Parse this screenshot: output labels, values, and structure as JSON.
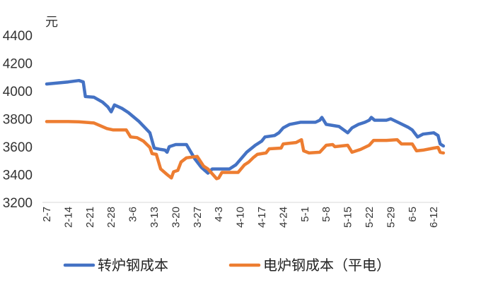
{
  "chart_data": {
    "type": "line",
    "ylabel": "元",
    "ylim": [
      3200,
      4400
    ],
    "yticks": [
      3200,
      3400,
      3600,
      3800,
      4000,
      4200,
      4400
    ],
    "grid": false,
    "legend_position": "bottom",
    "categories": [
      "2-7",
      "2-14",
      "2-21",
      "2-28",
      "3-6",
      "3-13",
      "3-20",
      "3-27",
      "4-3",
      "4-10",
      "4-17",
      "4-24",
      "5-1",
      "5-8",
      "5-15",
      "5-22",
      "5-29",
      "6-5",
      "6-12"
    ],
    "series": [
      {
        "name": "转炉钢成本",
        "color": "#4472C4",
        "points": [
          [
            0,
            4050
          ],
          [
            1,
            4065
          ],
          [
            1.5,
            4075
          ],
          [
            1.7,
            4065
          ],
          [
            1.8,
            3960
          ],
          [
            2.2,
            3955
          ],
          [
            2.6,
            3920
          ],
          [
            2.85,
            3885
          ],
          [
            3.0,
            3850
          ],
          [
            3.15,
            3900
          ],
          [
            3.5,
            3875
          ],
          [
            3.8,
            3845
          ],
          [
            4.3,
            3780
          ],
          [
            4.8,
            3700
          ],
          [
            5.0,
            3590
          ],
          [
            5.3,
            3580
          ],
          [
            5.5,
            3575
          ],
          [
            5.6,
            3560
          ],
          [
            5.7,
            3600
          ],
          [
            6.0,
            3615
          ],
          [
            6.5,
            3615
          ],
          [
            6.9,
            3510
          ],
          [
            7.2,
            3450
          ],
          [
            7.5,
            3410
          ],
          [
            7.7,
            3440
          ],
          [
            8.5,
            3440
          ],
          [
            8.8,
            3470
          ],
          [
            9.3,
            3560
          ],
          [
            9.7,
            3610
          ],
          [
            10.0,
            3640
          ],
          [
            10.15,
            3670
          ],
          [
            10.6,
            3680
          ],
          [
            10.8,
            3700
          ],
          [
            11.0,
            3735
          ],
          [
            11.3,
            3760
          ],
          [
            11.8,
            3775
          ],
          [
            12.5,
            3775
          ],
          [
            12.7,
            3790
          ],
          [
            12.8,
            3810
          ],
          [
            13.0,
            3760
          ],
          [
            13.6,
            3745
          ],
          [
            14.0,
            3700
          ],
          [
            14.2,
            3735
          ],
          [
            14.5,
            3760
          ],
          [
            14.8,
            3775
          ],
          [
            15.0,
            3790
          ],
          [
            15.1,
            3810
          ],
          [
            15.25,
            3790
          ],
          [
            15.8,
            3790
          ],
          [
            16.0,
            3800
          ],
          [
            16.4,
            3770
          ],
          [
            16.8,
            3740
          ],
          [
            17.0,
            3720
          ],
          [
            17.25,
            3670
          ],
          [
            17.5,
            3690
          ],
          [
            18.0,
            3700
          ],
          [
            18.2,
            3680
          ],
          [
            18.3,
            3620
          ],
          [
            18.45,
            3605
          ]
        ]
      },
      {
        "name": "电炉钢成本（平电）",
        "color": "#ED7D31",
        "points": [
          [
            0,
            3780
          ],
          [
            1,
            3780
          ],
          [
            1.5,
            3778
          ],
          [
            2.2,
            3770
          ],
          [
            2.8,
            3730
          ],
          [
            3.1,
            3720
          ],
          [
            3.7,
            3720
          ],
          [
            3.9,
            3670
          ],
          [
            4.2,
            3665
          ],
          [
            4.5,
            3640
          ],
          [
            4.8,
            3595
          ],
          [
            4.9,
            3550
          ],
          [
            5.1,
            3545
          ],
          [
            5.3,
            3440
          ],
          [
            5.6,
            3400
          ],
          [
            5.8,
            3375
          ],
          [
            5.9,
            3420
          ],
          [
            6.1,
            3430
          ],
          [
            6.25,
            3490
          ],
          [
            6.5,
            3520
          ],
          [
            7.0,
            3530
          ],
          [
            7.3,
            3460
          ],
          [
            7.5,
            3440
          ],
          [
            7.9,
            3370
          ],
          [
            8.0,
            3375
          ],
          [
            8.15,
            3415
          ],
          [
            8.9,
            3415
          ],
          [
            9.2,
            3470
          ],
          [
            9.4,
            3490
          ],
          [
            9.6,
            3520
          ],
          [
            9.8,
            3545
          ],
          [
            10.2,
            3555
          ],
          [
            10.35,
            3585
          ],
          [
            10.9,
            3590
          ],
          [
            11.0,
            3620
          ],
          [
            11.6,
            3630
          ],
          [
            11.85,
            3650
          ],
          [
            11.95,
            3570
          ],
          [
            12.2,
            3555
          ],
          [
            12.7,
            3560
          ],
          [
            13.0,
            3610
          ],
          [
            13.3,
            3615
          ],
          [
            13.4,
            3600
          ],
          [
            14.0,
            3610
          ],
          [
            14.2,
            3560
          ],
          [
            14.6,
            3580
          ],
          [
            15.0,
            3610
          ],
          [
            15.2,
            3645
          ],
          [
            15.8,
            3645
          ],
          [
            16.3,
            3650
          ],
          [
            16.5,
            3620
          ],
          [
            17.0,
            3620
          ],
          [
            17.2,
            3570
          ],
          [
            17.5,
            3575
          ],
          [
            18.0,
            3590
          ],
          [
            18.2,
            3595
          ],
          [
            18.3,
            3560
          ],
          [
            18.45,
            3555
          ]
        ]
      }
    ]
  }
}
